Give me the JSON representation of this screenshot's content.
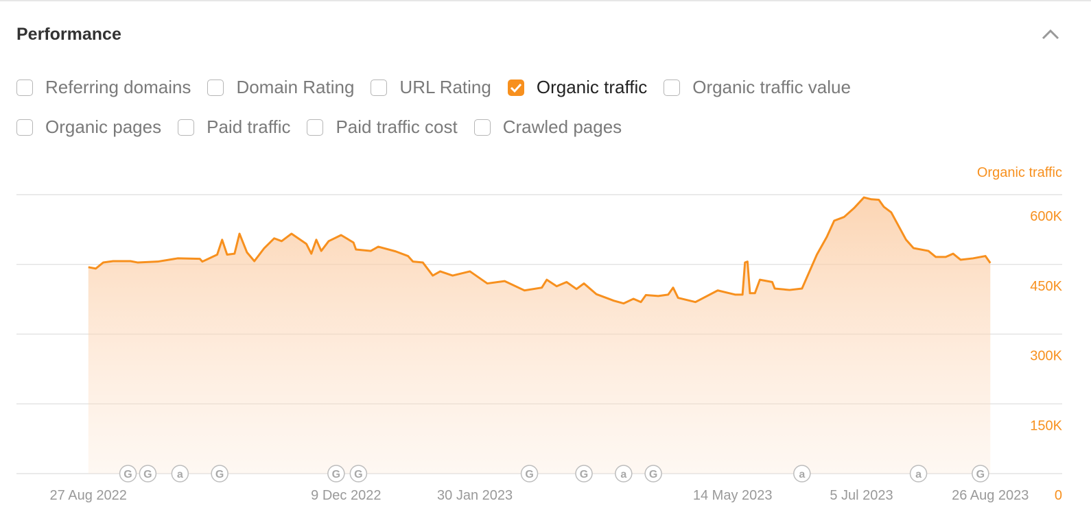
{
  "header": {
    "title": "Performance"
  },
  "options": [
    [
      {
        "label": "Referring domains",
        "checked": false
      },
      {
        "label": "Domain Rating",
        "checked": false
      },
      {
        "label": "URL Rating",
        "checked": false
      },
      {
        "label": "Organic traffic",
        "checked": true
      },
      {
        "label": "Organic traffic value",
        "checked": false
      }
    ],
    [
      {
        "label": "Organic pages",
        "checked": false
      },
      {
        "label": "Paid traffic",
        "checked": false
      },
      {
        "label": "Paid traffic cost",
        "checked": false
      },
      {
        "label": "Crawled pages",
        "checked": false
      }
    ]
  ],
  "chart_data": {
    "type": "area",
    "x": [
      "2022-08-27",
      "2022-08-30",
      "2022-09-02",
      "2022-09-06",
      "2022-09-13",
      "2022-09-16",
      "2022-09-24",
      "2022-10-02",
      "2022-10-11",
      "2022-10-12",
      "2022-10-18",
      "2022-10-20",
      "2022-10-22",
      "2022-10-25",
      "2022-10-27",
      "2022-10-30",
      "2022-11-02",
      "2022-11-06",
      "2022-11-10",
      "2022-11-13",
      "2022-11-17",
      "2022-11-23",
      "2022-11-25",
      "2022-11-27",
      "2022-11-29",
      "2022-12-02",
      "2022-12-07",
      "2022-12-12",
      "2022-12-13",
      "2022-12-19",
      "2022-12-22",
      "2022-12-29",
      "2023-01-03",
      "2023-01-05",
      "2023-01-09",
      "2023-01-13",
      "2023-01-16",
      "2023-01-21",
      "2023-01-28",
      "2023-02-04",
      "2023-02-11",
      "2023-02-19",
      "2023-02-26",
      "2023-02-28",
      "2023-03-04",
      "2023-03-08",
      "2023-03-12",
      "2023-03-15",
      "2023-03-20",
      "2023-03-27",
      "2023-03-31",
      "2023-04-04",
      "2023-04-07",
      "2023-04-09",
      "2023-04-14",
      "2023-04-18",
      "2023-04-20",
      "2023-04-22",
      "2023-04-29",
      "2023-05-08",
      "2023-05-15",
      "2023-05-18",
      "2023-05-19",
      "2023-05-20",
      "2023-05-21",
      "2023-05-23",
      "2023-05-25",
      "2023-05-30",
      "2023-05-31",
      "2023-06-06",
      "2023-06-11",
      "2023-06-17",
      "2023-06-21",
      "2023-06-24",
      "2023-06-28",
      "2023-07-02",
      "2023-07-06",
      "2023-07-09",
      "2023-07-12",
      "2023-07-14",
      "2023-07-17",
      "2023-07-23",
      "2023-07-26",
      "2023-08-01",
      "2023-08-04",
      "2023-08-08",
      "2023-08-11",
      "2023-08-14",
      "2023-08-19",
      "2023-08-24",
      "2023-08-26"
    ],
    "series": [
      {
        "name": "Organic traffic",
        "color": "#f7901e",
        "values": [
          444000,
          441000,
          454000,
          457000,
          457000,
          454000,
          456000,
          463000,
          462000,
          456000,
          471000,
          503000,
          471000,
          473000,
          516000,
          476000,
          457000,
          485000,
          506000,
          500000,
          516000,
          494000,
          473000,
          503000,
          479000,
          500000,
          513000,
          497000,
          482000,
          479000,
          488000,
          478000,
          468000,
          456000,
          454000,
          426000,
          435000,
          426000,
          435000,
          409000,
          414000,
          394000,
          400000,
          417000,
          403000,
          412000,
          397000,
          409000,
          386000,
          372000,
          366000,
          376000,
          369000,
          384000,
          382000,
          385000,
          400000,
          378000,
          369000,
          394000,
          385000,
          385000,
          454000,
          456000,
          388000,
          388000,
          417000,
          412000,
          398000,
          395000,
          398000,
          471000,
          509000,
          544000,
          552000,
          571000,
          594000,
          590000,
          589000,
          574000,
          562000,
          503000,
          485000,
          479000,
          466000,
          466000,
          473000,
          460000,
          463000,
          468000,
          453000
        ]
      }
    ],
    "xlim": [
      "2022-07-29",
      "2023-09-24"
    ],
    "xticks": [
      {
        "value": "2022-08-27",
        "label": "27 Aug 2022"
      },
      {
        "value": "2022-12-09",
        "label": "9 Dec 2022"
      },
      {
        "value": "2023-01-30",
        "label": "30 Jan 2023"
      },
      {
        "value": "2023-05-14",
        "label": "14 May 2023"
      },
      {
        "value": "2023-07-05",
        "label": "5 Jul 2023"
      },
      {
        "value": "2023-08-26",
        "label": "26 Aug 2023"
      }
    ],
    "ylim": [
      0,
      600000
    ],
    "yticks": [
      0,
      {
        "value": 150000,
        "label": "150K"
      },
      {
        "value": 300000,
        "label": "300K"
      },
      {
        "value": 450000,
        "label": "450K"
      },
      {
        "value": 600000,
        "label": "600K"
      }
    ],
    "grid": true,
    "events": [
      {
        "x": "2022-09-12",
        "label": "G"
      },
      {
        "x": "2022-09-20",
        "label": "G"
      },
      {
        "x": "2022-10-03",
        "label": "a"
      },
      {
        "x": "2022-10-19",
        "label": "G"
      },
      {
        "x": "2022-12-05",
        "label": "G"
      },
      {
        "x": "2022-12-14",
        "label": "G"
      },
      {
        "x": "2023-02-21",
        "label": "G"
      },
      {
        "x": "2023-03-15",
        "label": "G"
      },
      {
        "x": "2023-03-31",
        "label": "a"
      },
      {
        "x": "2023-04-12",
        "label": "G"
      },
      {
        "x": "2023-06-11",
        "label": "a"
      },
      {
        "x": "2023-07-28",
        "label": "a"
      },
      {
        "x": "2023-08-22",
        "label": "G"
      }
    ]
  }
}
